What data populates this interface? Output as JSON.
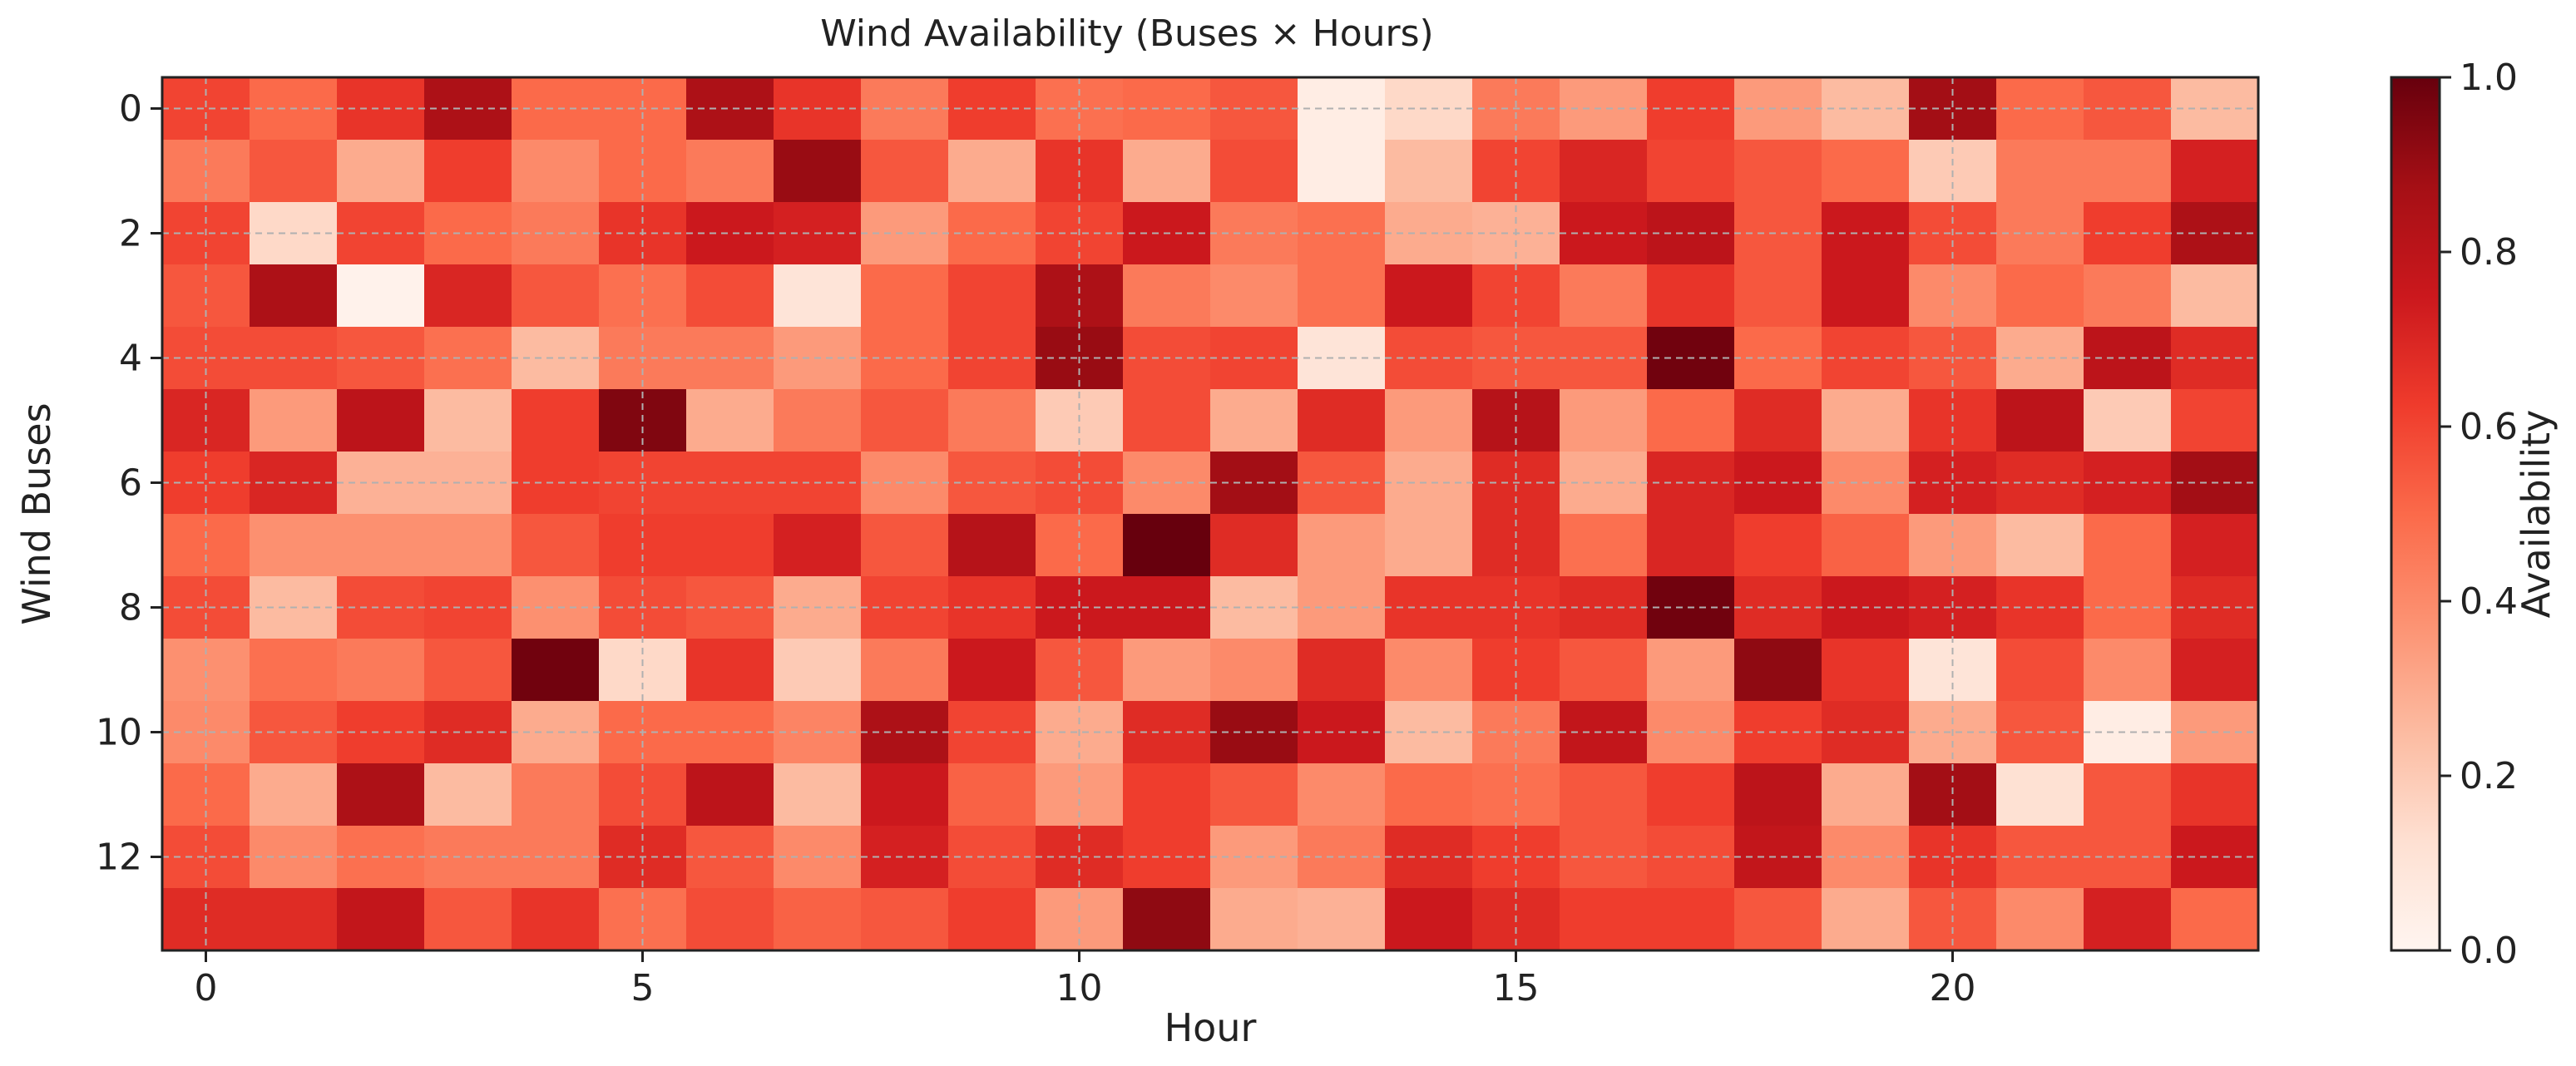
{
  "chart_data": {
    "type": "heatmap",
    "title": "Wind Availability (Buses × Hours)",
    "xlabel": "Hour",
    "ylabel": "Wind Buses",
    "colorbar_label": "Availability",
    "x_ticks": [
      0,
      5,
      10,
      15,
      20
    ],
    "y_ticks": [
      0,
      2,
      4,
      6,
      8,
      10,
      12
    ],
    "colorbar_ticks": [
      "0.0",
      "0.2",
      "0.4",
      "0.6",
      "0.8",
      "1.0"
    ],
    "colorbar_range": [
      0,
      1
    ],
    "n_cols": 24,
    "n_rows": 14,
    "grid": true,
    "colormap": "Reds",
    "values": [
      [
        0.6,
        0.5,
        0.65,
        0.85,
        0.5,
        0.5,
        0.85,
        0.65,
        0.45,
        0.62,
        0.48,
        0.5,
        0.55,
        0.05,
        0.15,
        0.45,
        0.35,
        0.62,
        0.35,
        0.25,
        0.88,
        0.5,
        0.55,
        0.25
      ],
      [
        0.45,
        0.55,
        0.3,
        0.62,
        0.4,
        0.5,
        0.45,
        0.9,
        0.55,
        0.3,
        0.65,
        0.3,
        0.58,
        0.05,
        0.25,
        0.6,
        0.7,
        0.6,
        0.55,
        0.5,
        0.2,
        0.45,
        0.45,
        0.72
      ],
      [
        0.6,
        0.15,
        0.6,
        0.5,
        0.45,
        0.65,
        0.75,
        0.72,
        0.35,
        0.5,
        0.6,
        0.75,
        0.45,
        0.48,
        0.3,
        0.28,
        0.75,
        0.8,
        0.55,
        0.75,
        0.58,
        0.45,
        0.62,
        0.85
      ],
      [
        0.55,
        0.85,
        0.02,
        0.7,
        0.55,
        0.48,
        0.58,
        0.1,
        0.5,
        0.6,
        0.85,
        0.45,
        0.4,
        0.48,
        0.75,
        0.6,
        0.45,
        0.65,
        0.55,
        0.75,
        0.4,
        0.5,
        0.45,
        0.25
      ],
      [
        0.58,
        0.58,
        0.55,
        0.48,
        0.25,
        0.45,
        0.45,
        0.35,
        0.5,
        0.6,
        0.9,
        0.58,
        0.6,
        0.1,
        0.58,
        0.55,
        0.55,
        0.98,
        0.5,
        0.6,
        0.55,
        0.3,
        0.8,
        0.68
      ],
      [
        0.7,
        0.35,
        0.8,
        0.25,
        0.62,
        0.95,
        0.3,
        0.45,
        0.55,
        0.45,
        0.2,
        0.58,
        0.3,
        0.68,
        0.35,
        0.82,
        0.35,
        0.5,
        0.68,
        0.3,
        0.65,
        0.8,
        0.2,
        0.6
      ],
      [
        0.62,
        0.7,
        0.28,
        0.28,
        0.62,
        0.6,
        0.6,
        0.6,
        0.4,
        0.55,
        0.58,
        0.4,
        0.88,
        0.55,
        0.3,
        0.68,
        0.3,
        0.7,
        0.75,
        0.4,
        0.72,
        0.68,
        0.72,
        0.88
      ],
      [
        0.5,
        0.38,
        0.38,
        0.38,
        0.55,
        0.62,
        0.62,
        0.72,
        0.55,
        0.82,
        0.5,
        1.0,
        0.68,
        0.35,
        0.3,
        0.68,
        0.48,
        0.7,
        0.62,
        0.52,
        0.35,
        0.25,
        0.5,
        0.72
      ],
      [
        0.58,
        0.25,
        0.58,
        0.6,
        0.38,
        0.58,
        0.55,
        0.3,
        0.6,
        0.65,
        0.75,
        0.75,
        0.25,
        0.35,
        0.65,
        0.65,
        0.68,
        0.98,
        0.68,
        0.75,
        0.72,
        0.65,
        0.5,
        0.68
      ],
      [
        0.38,
        0.48,
        0.45,
        0.55,
        0.98,
        0.15,
        0.65,
        0.2,
        0.45,
        0.75,
        0.55,
        0.35,
        0.4,
        0.68,
        0.4,
        0.62,
        0.55,
        0.35,
        0.92,
        0.65,
        0.1,
        0.58,
        0.4,
        0.72
      ],
      [
        0.4,
        0.55,
        0.62,
        0.68,
        0.3,
        0.5,
        0.5,
        0.42,
        0.85,
        0.6,
        0.3,
        0.68,
        0.9,
        0.75,
        0.25,
        0.45,
        0.78,
        0.4,
        0.62,
        0.68,
        0.3,
        0.55,
        0.05,
        0.35
      ],
      [
        0.5,
        0.3,
        0.85,
        0.25,
        0.45,
        0.58,
        0.8,
        0.25,
        0.75,
        0.52,
        0.35,
        0.62,
        0.55,
        0.4,
        0.5,
        0.48,
        0.55,
        0.62,
        0.8,
        0.3,
        0.88,
        0.12,
        0.55,
        0.65
      ],
      [
        0.58,
        0.4,
        0.48,
        0.45,
        0.45,
        0.68,
        0.55,
        0.4,
        0.72,
        0.58,
        0.68,
        0.62,
        0.35,
        0.45,
        0.68,
        0.62,
        0.55,
        0.58,
        0.78,
        0.4,
        0.65,
        0.55,
        0.55,
        0.75
      ],
      [
        0.68,
        0.68,
        0.78,
        0.55,
        0.65,
        0.48,
        0.58,
        0.52,
        0.55,
        0.62,
        0.35,
        0.92,
        0.3,
        0.28,
        0.75,
        0.68,
        0.62,
        0.62,
        0.55,
        0.3,
        0.55,
        0.4,
        0.72,
        0.5
      ]
    ]
  }
}
